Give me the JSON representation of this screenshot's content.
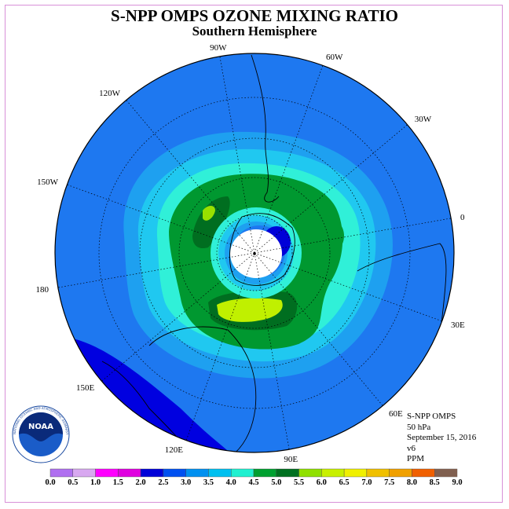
{
  "header": {
    "title": "S-NPP OMPS OZONE MIXING RATIO",
    "subtitle": "Southern Hemisphere"
  },
  "map": {
    "projection": "polar stereographic, south pole centered",
    "center_marker": "south pole",
    "longitude_labels": [
      {
        "lon": "90W",
        "angle_deg": 100
      },
      {
        "lon": "60W",
        "angle_deg": 70
      },
      {
        "lon": "30W",
        "angle_deg": 40
      },
      {
        "lon": "0",
        "angle_deg": 10
      },
      {
        "lon": "30E",
        "angle_deg": -20
      },
      {
        "lon": "60E",
        "angle_deg": -50
      },
      {
        "lon": "90E",
        "angle_deg": -80
      },
      {
        "lon": "120E",
        "angle_deg": -110
      },
      {
        "lon": "150E",
        "angle_deg": -140
      },
      {
        "lon": "180",
        "angle_deg": -170
      },
      {
        "lon": "150W",
        "angle_deg": 160
      },
      {
        "lon": "120W",
        "angle_deg": 130
      }
    ]
  },
  "info_block": {
    "instrument": "S-NPP OMPS",
    "level": "50 hPa",
    "date": "September 15, 2016",
    "version": "v6",
    "units": "PPM"
  },
  "colorbar": {
    "ticks": [
      "0.0",
      "0.5",
      "1.0",
      "1.5",
      "2.0",
      "2.5",
      "3.0",
      "3.5",
      "4.0",
      "4.5",
      "5.0",
      "5.5",
      "6.0",
      "6.5",
      "7.0",
      "7.5",
      "8.0",
      "8.5",
      "9.0"
    ],
    "colors": [
      "#b070f0",
      "#d8a8f0",
      "#ff00ff",
      "#e000e0",
      "#0000d8",
      "#0050f0",
      "#0090f0",
      "#00c0f0",
      "#20f0d0",
      "#00a030",
      "#007020",
      "#90e000",
      "#c8f000",
      "#f0f000",
      "#f0c000",
      "#f0a000",
      "#f06000",
      "#f00000",
      "#806050"
    ]
  },
  "logo": {
    "text": "NOAA",
    "ring_text": "NATIONAL OCEANIC AND ATMOSPHERIC ADMINISTRATION · U.S. DEPARTMENT OF COMMERCE"
  }
}
